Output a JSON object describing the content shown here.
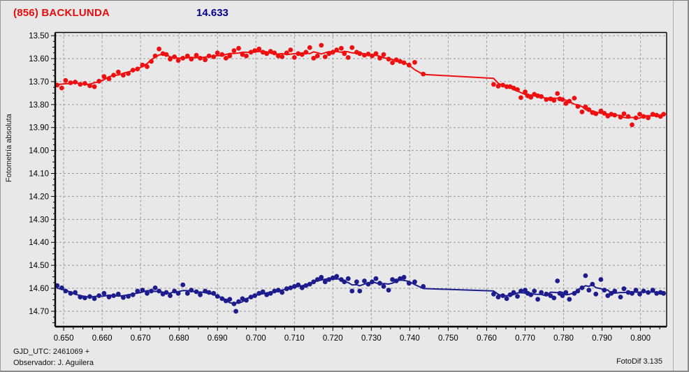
{
  "window": {
    "title_left": "(856) BACKLUNDA",
    "title_value": "14.633"
  },
  "footer": {
    "line1": "GJD_UTC: 2461069 +",
    "line2": "Observador: J. Aguilera",
    "app": "FotoDif 3.135"
  },
  "colors": {
    "title_red": "#e60d0d",
    "title_blue": "#00008c",
    "grid": "#989898",
    "frame": "#000000",
    "background": "#e8e8e8",
    "tick_text": "#000000"
  },
  "chart_data": {
    "type": "scatter",
    "title": "(856) BACKLUNDA  14.633",
    "xlabel": "",
    "ylabel": "Fotometría absoluta",
    "grid": true,
    "y_inverted": true,
    "x_range": [
      0.6478,
      0.8068
    ],
    "y_range_mag": [
      13.486,
      14.767
    ],
    "x_ticks": [
      "0.650",
      "0.660",
      "0.670",
      "0.680",
      "0.690",
      "0.700",
      "0.710",
      "0.720",
      "0.730",
      "0.740",
      "0.750",
      "0.760",
      "0.770",
      "0.780",
      "0.790",
      "0.800"
    ],
    "y_ticks": [
      "13.50",
      "13.60",
      "13.70",
      "13.80",
      "13.90",
      "14.00",
      "14.10",
      "14.20",
      "14.30",
      "14.40",
      "14.50",
      "14.60",
      "14.70"
    ],
    "series": [
      {
        "name": "(856) BACKLUNDA",
        "color": "#ee1010",
        "marker": "circle",
        "fit_line": true,
        "points": [
          [
            0.6483,
            13.715
          ],
          [
            0.6495,
            13.728
          ],
          [
            0.6505,
            13.695
          ],
          [
            0.6518,
            13.705
          ],
          [
            0.653,
            13.702
          ],
          [
            0.6543,
            13.712
          ],
          [
            0.6555,
            13.708
          ],
          [
            0.6568,
            13.718
          ],
          [
            0.658,
            13.722
          ],
          [
            0.6592,
            13.698
          ],
          [
            0.6605,
            13.678
          ],
          [
            0.6618,
            13.688
          ],
          [
            0.663,
            13.672
          ],
          [
            0.6642,
            13.658
          ],
          [
            0.6655,
            13.672
          ],
          [
            0.6668,
            13.665
          ],
          [
            0.668,
            13.65
          ],
          [
            0.6692,
            13.645
          ],
          [
            0.6705,
            13.628
          ],
          [
            0.6717,
            13.635
          ],
          [
            0.6728,
            13.612
          ],
          [
            0.6738,
            13.588
          ],
          [
            0.6748,
            13.558
          ],
          [
            0.6758,
            13.578
          ],
          [
            0.6767,
            13.582
          ],
          [
            0.6777,
            13.602
          ],
          [
            0.6788,
            13.592
          ],
          [
            0.6798,
            13.608
          ],
          [
            0.681,
            13.598
          ],
          [
            0.6822,
            13.588
          ],
          [
            0.6832,
            13.602
          ],
          [
            0.6845,
            13.585
          ],
          [
            0.6855,
            13.598
          ],
          [
            0.6868,
            13.605
          ],
          [
            0.6878,
            13.588
          ],
          [
            0.689,
            13.592
          ],
          [
            0.69,
            13.575
          ],
          [
            0.6912,
            13.582
          ],
          [
            0.6922,
            13.598
          ],
          [
            0.6932,
            13.588
          ],
          [
            0.6943,
            13.565
          ],
          [
            0.6955,
            13.555
          ],
          [
            0.6965,
            13.582
          ],
          [
            0.6975,
            13.588
          ],
          [
            0.6987,
            13.572
          ],
          [
            0.6997,
            13.565
          ],
          [
            0.7008,
            13.558
          ],
          [
            0.7018,
            13.572
          ],
          [
            0.7028,
            13.578
          ],
          [
            0.7038,
            13.568
          ],
          [
            0.7048,
            13.575
          ],
          [
            0.7058,
            13.588
          ],
          [
            0.7068,
            13.592
          ],
          [
            0.708,
            13.575
          ],
          [
            0.709,
            13.562
          ],
          [
            0.71,
            13.595
          ],
          [
            0.711,
            13.578
          ],
          [
            0.712,
            13.582
          ],
          [
            0.713,
            13.572
          ],
          [
            0.714,
            13.552
          ],
          [
            0.715,
            13.598
          ],
          [
            0.716,
            13.588
          ],
          [
            0.717,
            13.542
          ],
          [
            0.718,
            13.592
          ],
          [
            0.719,
            13.578
          ],
          [
            0.72,
            13.572
          ],
          [
            0.721,
            13.562
          ],
          [
            0.7222,
            13.555
          ],
          [
            0.723,
            13.578
          ],
          [
            0.724,
            13.595
          ],
          [
            0.725,
            13.552
          ],
          [
            0.7262,
            13.572
          ],
          [
            0.727,
            13.578
          ],
          [
            0.7282,
            13.585
          ],
          [
            0.7292,
            13.58
          ],
          [
            0.7302,
            13.588
          ],
          [
            0.7312,
            13.578
          ],
          [
            0.7322,
            13.598
          ],
          [
            0.7332,
            13.582
          ],
          [
            0.7345,
            13.602
          ],
          [
            0.7355,
            13.618
          ],
          [
            0.7365,
            13.605
          ],
          [
            0.7375,
            13.612
          ],
          [
            0.7385,
            13.618
          ],
          [
            0.7398,
            13.628
          ],
          [
            0.7413,
            13.616
          ],
          [
            0.7435,
            13.667
          ],
          [
            0.7618,
            13.712
          ],
          [
            0.763,
            13.72
          ],
          [
            0.7642,
            13.715
          ],
          [
            0.7652,
            13.722
          ],
          [
            0.7661,
            13.722
          ],
          [
            0.767,
            13.728
          ],
          [
            0.768,
            13.735
          ],
          [
            0.7689,
            13.77
          ],
          [
            0.77,
            13.745
          ],
          [
            0.7707,
            13.762
          ],
          [
            0.7715,
            13.768
          ],
          [
            0.7724,
            13.755
          ],
          [
            0.7733,
            13.762
          ],
          [
            0.7742,
            13.765
          ],
          [
            0.7755,
            13.778
          ],
          [
            0.7766,
            13.775
          ],
          [
            0.7775,
            13.782
          ],
          [
            0.7784,
            13.752
          ],
          [
            0.779,
            13.775
          ],
          [
            0.7797,
            13.778
          ],
          [
            0.7806,
            13.795
          ],
          [
            0.7815,
            13.785
          ],
          [
            0.7828,
            13.772
          ],
          [
            0.7837,
            13.808
          ],
          [
            0.7848,
            13.832
          ],
          [
            0.7857,
            13.81
          ],
          [
            0.7866,
            13.822
          ],
          [
            0.7875,
            13.835
          ],
          [
            0.7884,
            13.84
          ],
          [
            0.7897,
            13.828
          ],
          [
            0.7906,
            13.838
          ],
          [
            0.7915,
            13.85
          ],
          [
            0.7924,
            13.842
          ],
          [
            0.7933,
            13.846
          ],
          [
            0.7948,
            13.855
          ],
          [
            0.7957,
            13.84
          ],
          [
            0.7968,
            13.852
          ],
          [
            0.7978,
            13.888
          ],
          [
            0.7988,
            13.858
          ],
          [
            0.7998,
            13.842
          ],
          [
            0.8008,
            13.852
          ],
          [
            0.802,
            13.858
          ],
          [
            0.8032,
            13.842
          ],
          [
            0.8042,
            13.846
          ],
          [
            0.8052,
            13.852
          ],
          [
            0.806,
            13.842
          ]
        ]
      },
      {
        "name": "14.633",
        "color": "#1c1c8c",
        "marker": "circle",
        "fit_line": true,
        "points": [
          [
            0.6483,
            14.588
          ],
          [
            0.6495,
            14.598
          ],
          [
            0.6505,
            14.612
          ],
          [
            0.6518,
            14.622
          ],
          [
            0.653,
            14.618
          ],
          [
            0.6543,
            14.638
          ],
          [
            0.6555,
            14.642
          ],
          [
            0.6568,
            14.636
          ],
          [
            0.658,
            14.645
          ],
          [
            0.6592,
            14.632
          ],
          [
            0.6605,
            14.622
          ],
          [
            0.6618,
            14.638
          ],
          [
            0.663,
            14.632
          ],
          [
            0.6642,
            14.625
          ],
          [
            0.6655,
            14.64
          ],
          [
            0.6668,
            14.635
          ],
          [
            0.668,
            14.628
          ],
          [
            0.6692,
            14.612
          ],
          [
            0.6705,
            14.608
          ],
          [
            0.6717,
            14.622
          ],
          [
            0.6728,
            14.612
          ],
          [
            0.6738,
            14.598
          ],
          [
            0.6748,
            14.612
          ],
          [
            0.6758,
            14.625
          ],
          [
            0.6767,
            14.618
          ],
          [
            0.6777,
            14.632
          ],
          [
            0.6788,
            14.612
          ],
          [
            0.6798,
            14.622
          ],
          [
            0.681,
            14.585
          ],
          [
            0.6822,
            14.622
          ],
          [
            0.6832,
            14.608
          ],
          [
            0.6845,
            14.615
          ],
          [
            0.6855,
            14.628
          ],
          [
            0.6868,
            14.612
          ],
          [
            0.6878,
            14.618
          ],
          [
            0.689,
            14.622
          ],
          [
            0.69,
            14.635
          ],
          [
            0.6912,
            14.645
          ],
          [
            0.6922,
            14.655
          ],
          [
            0.6932,
            14.648
          ],
          [
            0.6943,
            14.668
          ],
          [
            0.6948,
            14.7
          ],
          [
            0.6955,
            14.658
          ],
          [
            0.6965,
            14.645
          ],
          [
            0.6975,
            14.652
          ],
          [
            0.6987,
            14.638
          ],
          [
            0.6997,
            14.632
          ],
          [
            0.7008,
            14.622
          ],
          [
            0.7018,
            14.615
          ],
          [
            0.7028,
            14.628
          ],
          [
            0.7038,
            14.622
          ],
          [
            0.7048,
            14.612
          ],
          [
            0.7058,
            14.608
          ],
          [
            0.7068,
            14.618
          ],
          [
            0.708,
            14.602
          ],
          [
            0.709,
            14.598
          ],
          [
            0.71,
            14.592
          ],
          [
            0.711,
            14.585
          ],
          [
            0.712,
            14.598
          ],
          [
            0.713,
            14.588
          ],
          [
            0.714,
            14.582
          ],
          [
            0.715,
            14.572
          ],
          [
            0.716,
            14.562
          ],
          [
            0.717,
            14.552
          ],
          [
            0.718,
            14.572
          ],
          [
            0.719,
            14.562
          ],
          [
            0.72,
            14.555
          ],
          [
            0.721,
            14.548
          ],
          [
            0.7222,
            14.562
          ],
          [
            0.723,
            14.572
          ],
          [
            0.724,
            14.558
          ],
          [
            0.725,
            14.612
          ],
          [
            0.7262,
            14.572
          ],
          [
            0.727,
            14.612
          ],
          [
            0.7282,
            14.568
          ],
          [
            0.7292,
            14.582
          ],
          [
            0.7302,
            14.572
          ],
          [
            0.7312,
            14.558
          ],
          [
            0.7322,
            14.578
          ],
          [
            0.7332,
            14.592
          ],
          [
            0.7345,
            14.608
          ],
          [
            0.7355,
            14.562
          ],
          [
            0.7365,
            14.568
          ],
          [
            0.7375,
            14.558
          ],
          [
            0.7385,
            14.552
          ],
          [
            0.7398,
            14.578
          ],
          [
            0.7413,
            14.572
          ],
          [
            0.7435,
            14.592
          ],
          [
            0.7618,
            14.625
          ],
          [
            0.763,
            14.638
          ],
          [
            0.7642,
            14.632
          ],
          [
            0.7652,
            14.645
          ],
          [
            0.7661,
            14.628
          ],
          [
            0.767,
            14.618
          ],
          [
            0.768,
            14.635
          ],
          [
            0.7689,
            14.612
          ],
          [
            0.77,
            14.608
          ],
          [
            0.7707,
            14.622
          ],
          [
            0.7715,
            14.628
          ],
          [
            0.7724,
            14.612
          ],
          [
            0.7733,
            14.648
          ],
          [
            0.7742,
            14.618
          ],
          [
            0.7755,
            14.625
          ],
          [
            0.7766,
            14.632
          ],
          [
            0.7775,
            14.642
          ],
          [
            0.7784,
            14.568
          ],
          [
            0.779,
            14.622
          ],
          [
            0.7797,
            14.632
          ],
          [
            0.7806,
            14.618
          ],
          [
            0.7815,
            14.648
          ],
          [
            0.7828,
            14.622
          ],
          [
            0.7837,
            14.612
          ],
          [
            0.7848,
            14.598
          ],
          [
            0.7857,
            14.545
          ],
          [
            0.7866,
            14.608
          ],
          [
            0.7875,
            14.582
          ],
          [
            0.7884,
            14.625
          ],
          [
            0.7897,
            14.562
          ],
          [
            0.7906,
            14.608
          ],
          [
            0.7915,
            14.632
          ],
          [
            0.7924,
            14.622
          ],
          [
            0.7933,
            14.612
          ],
          [
            0.7948,
            14.638
          ],
          [
            0.7957,
            14.602
          ],
          [
            0.7968,
            14.618
          ],
          [
            0.7978,
            14.622
          ],
          [
            0.7988,
            14.608
          ],
          [
            0.7998,
            14.625
          ],
          [
            0.8008,
            14.612
          ],
          [
            0.802,
            14.618
          ],
          [
            0.8032,
            14.608
          ],
          [
            0.8042,
            14.622
          ],
          [
            0.8052,
            14.618
          ],
          [
            0.806,
            14.622
          ]
        ]
      }
    ]
  }
}
